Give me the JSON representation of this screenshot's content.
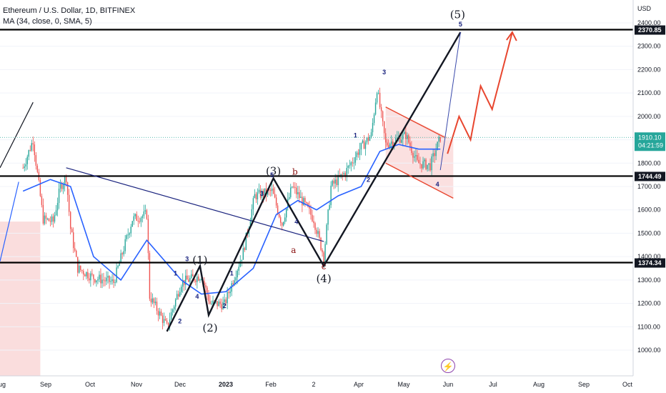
{
  "header": {
    "title": "Ethereum / U.S. Dollar, 1D, BITFINEX",
    "indicator": "MA (34, close, 0, SMA, 5)"
  },
  "chart_data": {
    "type": "candlestick",
    "currency": "USD",
    "ylim": [
      900,
      2460
    ],
    "y_ticks": [
      1000,
      1100,
      1200,
      1300,
      1400,
      1500,
      1600,
      1700,
      1800,
      1900,
      2000,
      2100,
      2200,
      2300,
      2400
    ],
    "y_tick_labels": [
      "1000.00",
      "1100.00",
      "1200.00",
      "1300.00",
      "1400.00",
      "1500.00",
      "1600.00",
      "1700.00",
      "1800.00",
      "1900.00",
      "2000.00",
      "2100.00",
      "2200.00",
      "2300.00",
      "2400.00"
    ],
    "x_tick_labels": [
      "Aug",
      "Sep",
      "Oct",
      "Nov",
      "Dec",
      "2023",
      "Feb",
      "2",
      "Apr",
      "May",
      "Jun",
      "Jul",
      "Aug",
      "Sep",
      "Oct"
    ],
    "current_price": "1910.10",
    "countdown": "04:21:59",
    "horizontal_levels": [
      {
        "value": 2370.85,
        "label": "2370.85"
      },
      {
        "value": 1744.49,
        "label": "1744.49"
      },
      {
        "value": 1374.34,
        "label": "1374.34"
      }
    ],
    "price_path": [
      {
        "x": "2022-08-13",
        "y": 1780
      },
      {
        "x": "2022-08-20",
        "y": 1900
      },
      {
        "x": "2022-08-27",
        "y": 1560
      },
      {
        "x": "2022-09-03",
        "y": 1550
      },
      {
        "x": "2022-09-08",
        "y": 1700
      },
      {
        "x": "2022-09-12",
        "y": 1740
      },
      {
        "x": "2022-09-15",
        "y": 1520
      },
      {
        "x": "2022-09-20",
        "y": 1350
      },
      {
        "x": "2022-10-01",
        "y": 1310
      },
      {
        "x": "2022-10-15",
        "y": 1290
      },
      {
        "x": "2022-10-28",
        "y": 1560
      },
      {
        "x": "2022-11-07",
        "y": 1580
      },
      {
        "x": "2022-11-09",
        "y": 1230
      },
      {
        "x": "2022-11-21",
        "y": 1100
      },
      {
        "x": "2022-12-01",
        "y": 1290
      },
      {
        "x": "2022-12-15",
        "y": 1320
      },
      {
        "x": "2022-12-21",
        "y": 1200
      },
      {
        "x": "2022-12-31",
        "y": 1196
      },
      {
        "x": "2023-01-13",
        "y": 1420
      },
      {
        "x": "2023-01-21",
        "y": 1660
      },
      {
        "x": "2023-02-02",
        "y": 1680
      },
      {
        "x": "2023-02-09",
        "y": 1540
      },
      {
        "x": "2023-02-16",
        "y": 1700
      },
      {
        "x": "2023-02-25",
        "y": 1620
      },
      {
        "x": "2023-03-03",
        "y": 1560
      },
      {
        "x": "2023-03-10",
        "y": 1400
      },
      {
        "x": "2023-03-15",
        "y": 1700
      },
      {
        "x": "2023-03-25",
        "y": 1760
      },
      {
        "x": "2023-04-04",
        "y": 1860
      },
      {
        "x": "2023-04-12",
        "y": 1920
      },
      {
        "x": "2023-04-16",
        "y": 2120
      },
      {
        "x": "2023-04-22",
        "y": 1880
      },
      {
        "x": "2023-05-06",
        "y": 1920
      },
      {
        "x": "2023-05-14",
        "y": 1800
      },
      {
        "x": "2023-05-23",
        "y": 1790
      },
      {
        "x": "2023-05-30",
        "y": 1910
      }
    ],
    "ma_path": [
      {
        "x": "2022-08-13",
        "y": 1680
      },
      {
        "x": "2022-09-01",
        "y": 1730
      },
      {
        "x": "2022-09-15",
        "y": 1700
      },
      {
        "x": "2022-10-01",
        "y": 1400
      },
      {
        "x": "2022-10-20",
        "y": 1300
      },
      {
        "x": "2022-11-07",
        "y": 1470
      },
      {
        "x": "2022-12-01",
        "y": 1300
      },
      {
        "x": "2022-12-15",
        "y": 1240
      },
      {
        "x": "2023-01-01",
        "y": 1250
      },
      {
        "x": "2023-01-20",
        "y": 1350
      },
      {
        "x": "2023-02-05",
        "y": 1580
      },
      {
        "x": "2023-02-20",
        "y": 1640
      },
      {
        "x": "2023-03-05",
        "y": 1600
      },
      {
        "x": "2023-03-20",
        "y": 1660
      },
      {
        "x": "2023-04-05",
        "y": 1700
      },
      {
        "x": "2023-04-18",
        "y": 1850
      },
      {
        "x": "2023-05-01",
        "y": 1880
      },
      {
        "x": "2023-05-15",
        "y": 1860
      },
      {
        "x": "2023-05-30",
        "y": 1860
      }
    ],
    "elliott_main": [
      {
        "x": "2022-11-21",
        "y": 1080
      },
      {
        "x": "2022-12-14",
        "y": 1360
      },
      {
        "x": "2022-12-20",
        "y": 1150
      },
      {
        "x": "2023-02-03",
        "y": 1735
      },
      {
        "x": "2023-03-10",
        "y": 1360
      },
      {
        "x": "2023-06-13",
        "y": 2360
      }
    ],
    "elliott_main_labels": [
      {
        "x": "2022-12-14",
        "y": 1370,
        "text": "(1)"
      },
      {
        "x": "2022-12-21",
        "y": 1080,
        "text": "(2)"
      },
      {
        "x": "2023-02-03",
        "y": 1750,
        "text": "(3)"
      },
      {
        "x": "2023-03-10",
        "y": 1290,
        "text": "(4)"
      },
      {
        "x": "2023-06-11",
        "y": 2420,
        "text": "(5)"
      }
    ],
    "forecast_path": [
      {
        "x": "2023-06-04",
        "y": 1840
      },
      {
        "x": "2023-06-12",
        "y": 2000
      },
      {
        "x": "2023-06-20",
        "y": 1900
      },
      {
        "x": "2023-06-27",
        "y": 2130
      },
      {
        "x": "2023-07-05",
        "y": 2030
      },
      {
        "x": "2023-07-19",
        "y": 2360
      }
    ],
    "channel_top": [
      {
        "x": "2023-04-22",
        "y": 2040
      },
      {
        "x": "2023-06-02",
        "y": 1910
      }
    ],
    "channel_bottom": [
      {
        "x": "2023-04-22",
        "y": 1800
      },
      {
        "x": "2023-06-08",
        "y": 1650
      }
    ],
    "diagonal_resistance": [
      {
        "x": "2022-09-12",
        "y": 1780
      },
      {
        "x": "2023-03-10",
        "y": 1465
      }
    ],
    "minor_labels": [
      {
        "x": "2022-11-27",
        "y": 1320,
        "text": "1"
      },
      {
        "x": "2022-12-05",
        "y": 1380,
        "text": "3"
      },
      {
        "x": "2022-11-30",
        "y": 1115,
        "text": "2"
      },
      {
        "x": "2022-12-12",
        "y": 1220,
        "text": "4"
      },
      {
        "x": "2023-01-05",
        "y": 1320,
        "text": "1"
      },
      {
        "x": "2022-12-31",
        "y": 1180,
        "text": "2"
      },
      {
        "x": "2023-01-26",
        "y": 1660,
        "text": "3"
      },
      {
        "x": "2023-02-02",
        "y": 1740,
        "text": "5"
      },
      {
        "x": "2023-02-19",
        "y": 1540,
        "text": "4"
      },
      {
        "x": "2023-04-01",
        "y": 1910,
        "text": "1"
      },
      {
        "x": "2023-04-10",
        "y": 1720,
        "text": "2"
      },
      {
        "x": "2023-04-21",
        "y": 2180,
        "text": "3"
      },
      {
        "x": "2023-05-28",
        "y": 1700,
        "text": "4"
      },
      {
        "x": "2023-06-13",
        "y": 2385,
        "text": "5"
      }
    ],
    "correction_labels": [
      {
        "x": "2023-02-17",
        "y": 1415,
        "text": "a"
      },
      {
        "x": "2023-02-18",
        "y": 1750,
        "text": "b"
      },
      {
        "x": "2023-03-10",
        "y": 1345,
        "text": "c"
      }
    ]
  },
  "colors": {
    "bull": "#26a69a",
    "bear": "#ef5350",
    "ma": "#2962ff",
    "wave": "#131722",
    "forecast": "#e8462f",
    "level": "#000000",
    "highlight": "#f7c6c6",
    "label_bg": "#131722",
    "current_bg": "#26a69a",
    "minor_label": "#1a237e",
    "correction_label": "#880e0e"
  },
  "logo_glyph": "⚡"
}
